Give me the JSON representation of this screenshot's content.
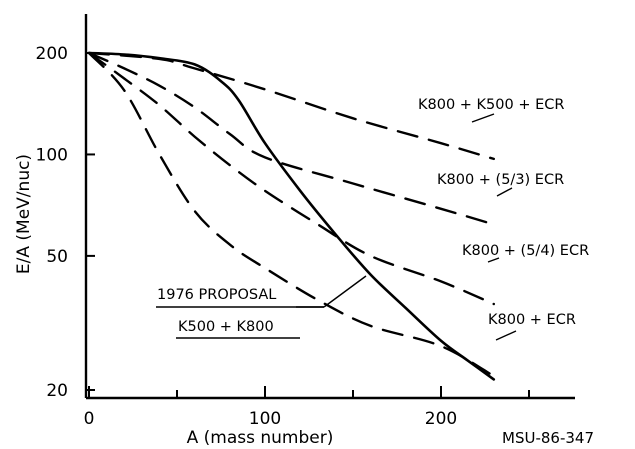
{
  "chart_data": {
    "type": "line",
    "title": "",
    "xlabel": "A (mass number)",
    "ylabel": "E/A (MeV/nuc)",
    "x_axis": {
      "scale": "linear",
      "range": [
        0,
        260
      ],
      "ticks": [
        0,
        100,
        200
      ],
      "tick_labels": [
        "0",
        "100",
        "200"
      ],
      "minor_ticks": [
        50,
        150,
        250
      ]
    },
    "y_axis": {
      "scale": "log",
      "range": [
        14,
        260
      ],
      "ticks": [
        20,
        50,
        100,
        200
      ],
      "tick_labels": [
        "20",
        "50",
        "100",
        "200"
      ]
    },
    "grid": false,
    "series": [
      {
        "name": "1976 PROPOSAL K500 + K800",
        "style": "solid",
        "x": [
          0,
          20,
          40,
          60,
          75,
          85,
          100,
          120,
          140,
          160,
          180,
          200,
          215,
          230
        ],
        "y": [
          200,
          198,
          193,
          185,
          165,
          145,
          108,
          78,
          58,
          44,
          35,
          28,
          24.5,
          21.5
        ]
      },
      {
        "name": "K800 + K500 + ECR",
        "style": "dashed",
        "x": [
          0,
          40,
          60,
          100,
          150,
          200,
          230
        ],
        "y": [
          200,
          192,
          180,
          156,
          128,
          108,
          97
        ]
      },
      {
        "name": "K800 + (5/3) ECR",
        "style": "dashed",
        "x": [
          0,
          20,
          40,
          60,
          80,
          100,
          150,
          200,
          230
        ],
        "y": [
          200,
          180,
          160,
          138,
          115,
          98,
          82,
          69,
          62
        ]
      },
      {
        "name": "K800 + (5/4) ECR",
        "style": "dashed",
        "x": [
          0,
          20,
          40,
          60,
          80,
          100,
          130,
          160,
          200,
          230
        ],
        "y": [
          200,
          168,
          140,
          113,
          93,
          78,
          62,
          50,
          42,
          36
        ]
      },
      {
        "name": "K800 + ECR",
        "style": "dashed",
        "x": [
          0,
          20,
          40,
          60,
          80,
          100,
          130,
          160,
          200,
          230
        ],
        "y": [
          200,
          155,
          100,
          68,
          54,
          46,
          37,
          31,
          27,
          22
        ]
      }
    ],
    "annotations": [
      {
        "line1": "1976 PROPOSAL",
        "line2": "K500 + K800"
      }
    ],
    "figure_id": "MSU-86-347"
  }
}
